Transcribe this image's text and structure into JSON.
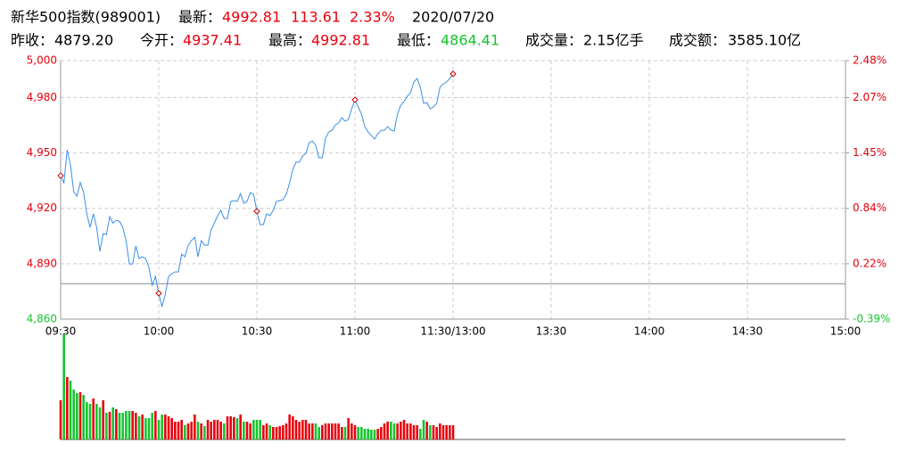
{
  "header": {
    "title": "新华500指数(989001)",
    "last_label": "最新：",
    "last": "4992.81",
    "change": "113.61",
    "change_pct": "2.33%",
    "date": "2020/07/20",
    "quote_color": "#e8000b",
    "stats": [
      {
        "label": "昨收：",
        "value": "4879.20",
        "color": "#000000"
      },
      {
        "label": "今开：",
        "value": "4937.41",
        "color": "#e8000b"
      },
      {
        "label": "最高：",
        "value": "4992.81",
        "color": "#e8000b"
      },
      {
        "label": "最低：",
        "value": "4864.41",
        "color": "#13c42c"
      },
      {
        "label": "成交量：",
        "value": "2.15亿手",
        "color": "#000000"
      },
      {
        "label": "成交额：",
        "value": "3585.10亿",
        "color": "#000000"
      }
    ]
  },
  "chart_data": {
    "type": "intraday",
    "preclose": 4879.2,
    "line_color": "#3a8ee6",
    "up_color": "#e8000b",
    "down_color": "#13c42c",
    "marker_color": "#cc0000",
    "marker_every": 30,
    "xlim": [
      0,
      240
    ],
    "xticks": [
      {
        "value": 0,
        "label": "09:30"
      },
      {
        "value": 30,
        "label": "10:00"
      },
      {
        "value": 60,
        "label": "10:30"
      },
      {
        "value": 90,
        "label": "11:00"
      },
      {
        "value": 120,
        "label": "11:30/13:00"
      },
      {
        "value": 150,
        "label": "13:30"
      },
      {
        "value": 180,
        "label": "14:00"
      },
      {
        "value": 210,
        "label": "14:30"
      },
      {
        "value": 240,
        "label": "15:00"
      }
    ],
    "ylim": [
      4860,
      5000
    ],
    "yticks": [
      {
        "value": 4860,
        "label": "4,860"
      },
      {
        "value": 4890,
        "label": "4,890"
      },
      {
        "value": 4920,
        "label": "4,920"
      },
      {
        "value": 4950,
        "label": "4,950"
      },
      {
        "value": 4980,
        "label": "4,980"
      },
      {
        "value": 5000,
        "label": "5,000"
      }
    ],
    "y2lim": [
      -0.3935,
      2.4758
    ],
    "y2ticks": [
      {
        "value": -0.3935,
        "label": "-0.39%"
      },
      {
        "value": 0.2213,
        "label": "0.22%"
      },
      {
        "value": 0.8362,
        "label": "0.84%"
      },
      {
        "value": 1.4511,
        "label": "1.45%"
      },
      {
        "value": 2.066,
        "label": "2.07%"
      },
      {
        "value": 2.4758,
        "label": "2.48%"
      }
    ],
    "grid": true,
    "series": [
      {
        "name": "price",
        "values": [
          4937.7,
          4933.8,
          4951.7,
          4943.5,
          4929,
          4926.6,
          4934,
          4929,
          4917,
          4909.7,
          4917,
          4909.7,
          4896.7,
          4906.3,
          4905.8,
          4915.5,
          4912,
          4913.5,
          4913,
          4909.7,
          4902.5,
          4889.9,
          4889.9,
          4899.6,
          4892.8,
          4893.8,
          4892.8,
          4888,
          4878.3,
          4883.1,
          4874,
          4866.7,
          4873.5,
          4883.1,
          4884.6,
          4885.6,
          4885.6,
          4895.2,
          4893.8,
          4900,
          4902.5,
          4904.4,
          4893.8,
          4902.5,
          4900,
          4900,
          4908.3,
          4912,
          4916,
          4918.9,
          4914.5,
          4914.5,
          4923.7,
          4924.2,
          4923.7,
          4928,
          4922.7,
          4923.7,
          4928.5,
          4927.6,
          4918.4,
          4911.2,
          4911.2,
          4917,
          4916,
          4918.9,
          4923.7,
          4924.2,
          4924.7,
          4927.6,
          4933.8,
          4941.1,
          4945,
          4945,
          4948.3,
          4949.8,
          4955.6,
          4956.5,
          4954.1,
          4947.4,
          4947.4,
          4958,
          4961.4,
          4962.3,
          4965.2,
          4966.2,
          4969.1,
          4967.2,
          4968.1,
          4973.9,
          4978.8,
          4974.9,
          4971,
          4964.3,
          4961.4,
          4959.4,
          4957.5,
          4960.4,
          4962.3,
          4962.3,
          4964.3,
          4962.3,
          4961.9,
          4971,
          4975.9,
          4977.8,
          4980.7,
          4982.6,
          4988.4,
          4990.3,
          4985.5,
          4976.8,
          4977.3,
          4973.9,
          4974.9,
          4976.8,
          4985.5,
          4987.4,
          4988.4,
          4990.3,
          4992.81
        ]
      },
      {
        "name": "volume",
        "values": [
          44,
          118,
          70,
          66,
          56,
          52,
          53,
          50,
          42,
          40,
          46,
          40,
          36,
          44,
          30,
          31,
          36,
          34,
          30,
          30,
          32,
          32,
          32,
          30,
          26,
          28,
          24,
          24,
          30,
          32,
          22,
          28,
          28,
          26,
          24,
          20,
          20,
          22,
          16,
          18,
          20,
          28,
          20,
          18,
          15,
          22,
          20,
          22,
          22,
          20,
          18,
          26,
          26,
          25,
          24,
          28,
          20,
          20,
          18,
          22,
          22,
          22,
          16,
          18,
          16,
          14,
          14,
          15,
          16,
          18,
          28,
          26,
          22,
          20,
          22,
          22,
          18,
          18,
          18,
          14,
          16,
          18,
          18,
          18,
          18,
          18,
          14,
          14,
          24,
          18,
          16,
          14,
          14,
          12,
          12,
          11,
          11,
          12,
          14,
          18,
          20,
          20,
          18,
          18,
          20,
          22,
          18,
          18,
          16,
          16,
          12,
          22,
          20,
          16,
          16,
          14,
          18,
          16,
          16,
          16,
          16
        ]
      }
    ],
    "vlim": [
      0,
      118
    ]
  }
}
